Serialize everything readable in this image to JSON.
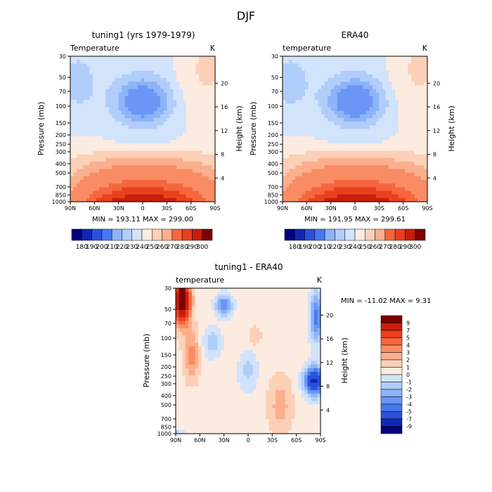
{
  "title": "DJF",
  "palettes": {
    "field": [
      "#00007f",
      "#0f28b4",
      "#2d50dc",
      "#4678f0",
      "#6b96f5",
      "#8cb4f8",
      "#b1cdfa",
      "#d2e3fc",
      "#fcebe0",
      "#fcd0b7",
      "#fbaf8c",
      "#f98c64",
      "#f6663e",
      "#e9401f",
      "#c81e0c",
      "#7d0000"
    ],
    "diff": [
      "#00007f",
      "#0f28b4",
      "#2d50dc",
      "#4678f0",
      "#6b96f5",
      "#8cb4f8",
      "#b1cdfa",
      "#d2e3fc",
      "#fcebe0",
      "#fcd0b7",
      "#fbaf8c",
      "#f98c64",
      "#f6663e",
      "#e9401f",
      "#c81e0c",
      "#7d0000"
    ]
  },
  "chart_data": [
    {
      "type": "heatmap",
      "id": "model",
      "title": "tuning1 (yrs 1979-1979)",
      "left_label": "Temperature",
      "units": "K",
      "xlabel": "",
      "ylabel": "Pressure (mb)",
      "ylabel_right": "Height (km)",
      "x_ticks": [
        "90N",
        "60N",
        "30N",
        "0",
        "30S",
        "60S",
        "90S"
      ],
      "x_range": [
        90,
        -90
      ],
      "y_ticks": [
        30,
        50,
        70,
        100,
        150,
        200,
        250,
        300,
        400,
        500,
        700,
        850,
        1000
      ],
      "y_range_mb": [
        1000,
        30
      ],
      "height_ticks": [
        4,
        8,
        12,
        16,
        20
      ],
      "stats": "MIN = 193.11   MAX = 299.00",
      "contour_levels": [
        180,
        185,
        190,
        195,
        200,
        205,
        210,
        215,
        220,
        230,
        240,
        250,
        260,
        270,
        280,
        290,
        300
      ],
      "colorbar_labels": [
        "180",
        "190",
        "200",
        "210",
        "220",
        "230",
        "240",
        "250",
        "260",
        "270",
        "280",
        "290",
        "300"
      ],
      "colorbar_orientation": "horizontal"
    },
    {
      "type": "heatmap",
      "id": "obs",
      "title": "ERA40",
      "left_label": "temperature",
      "units": "K",
      "xlabel": "",
      "ylabel": "Pressure (mb)",
      "ylabel_right": "Height (km)",
      "x_ticks": [
        "90N",
        "60N",
        "30N",
        "0",
        "30S",
        "60S",
        "90S"
      ],
      "x_range": [
        90,
        -90
      ],
      "y_ticks": [
        30,
        50,
        70,
        100,
        150,
        200,
        250,
        300,
        400,
        500,
        700,
        850,
        1000
      ],
      "y_range_mb": [
        1000,
        30
      ],
      "height_ticks": [
        4,
        8,
        12,
        16,
        20
      ],
      "stats": "MIN = 191.95   MAX = 299.61",
      "contour_levels": [
        180,
        185,
        190,
        195,
        200,
        205,
        210,
        215,
        220,
        230,
        240,
        250,
        260,
        270,
        280,
        290,
        300
      ],
      "colorbar_labels": [
        "180",
        "190",
        "200",
        "210",
        "220",
        "230",
        "240",
        "250",
        "260",
        "270",
        "280",
        "290",
        "300"
      ],
      "colorbar_orientation": "horizontal"
    },
    {
      "type": "heatmap",
      "id": "diff",
      "title": "tuning1 - ERA40",
      "left_label": "temperature",
      "units": "K",
      "xlabel": "",
      "ylabel": "Pressure (mb)",
      "ylabel_right": "Height (km)",
      "x_ticks": [
        "90N",
        "60N",
        "30N",
        "0",
        "30S",
        "60S",
        "90S"
      ],
      "x_range": [
        90,
        -90
      ],
      "y_ticks": [
        30,
        50,
        70,
        100,
        150,
        200,
        250,
        300,
        400,
        500,
        700,
        850,
        1000
      ],
      "y_range_mb": [
        1000,
        30
      ],
      "height_ticks": [
        4,
        8,
        12,
        16,
        20
      ],
      "stats": "MIN = -11.02   MAX =    9.31",
      "contour_levels": [
        -9,
        -7,
        -5,
        -4,
        -3,
        -2,
        -1,
        0,
        1,
        2,
        3,
        4,
        5,
        7,
        9
      ],
      "colorbar_labels": [
        "9",
        "7",
        "5",
        "4",
        "3",
        "2",
        "1",
        "0",
        "-1",
        "-2",
        "-3",
        "-4",
        "-5",
        "-7",
        "-9"
      ],
      "colorbar_orientation": "vertical"
    }
  ]
}
